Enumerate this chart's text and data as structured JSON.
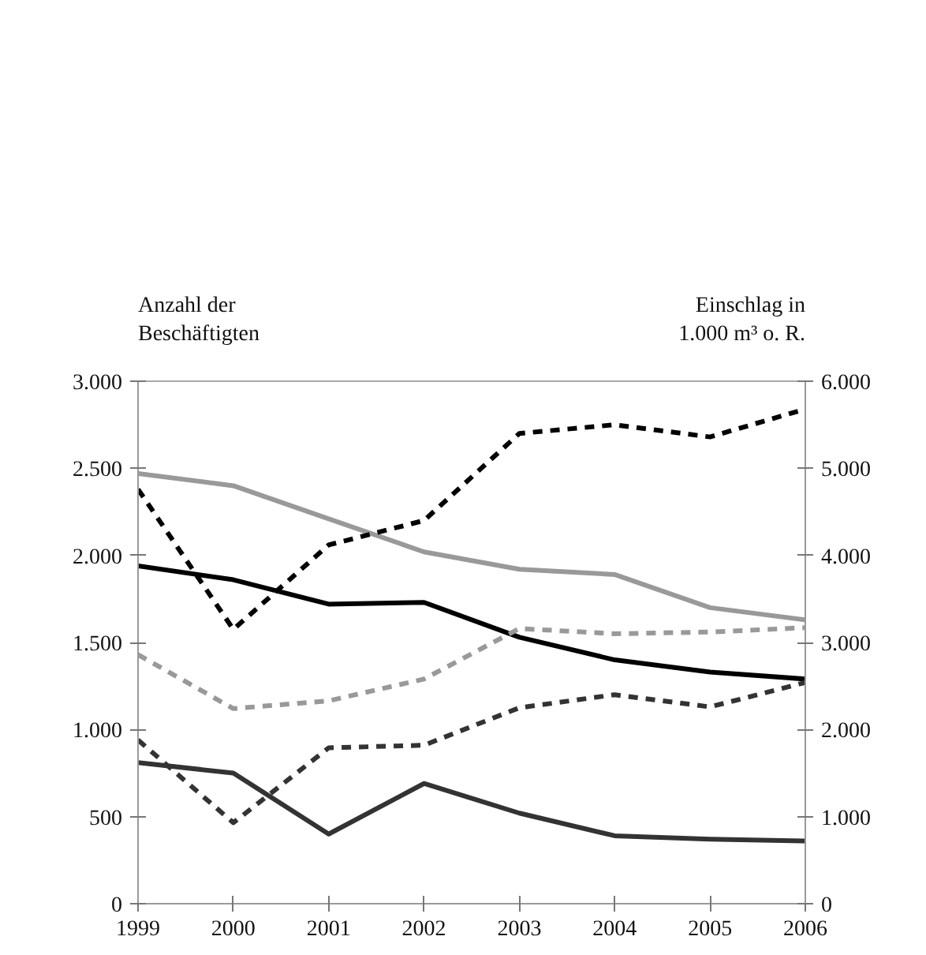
{
  "chart_data": {
    "type": "line",
    "ylabel": "Anzahl der\nBeschäftigten",
    "y2label": "Einschlag in\n1.000 m³ o. R.",
    "x": [
      1999,
      2000,
      2001,
      2002,
      2003,
      2004,
      2005,
      2006
    ],
    "xlim": [
      1999,
      2006
    ],
    "xticks": [
      1999,
      2000,
      2001,
      2002,
      2003,
      2004,
      2005,
      2006
    ],
    "ylim": [
      0,
      3000
    ],
    "yticks": [
      0,
      {
        "value": 500,
        "label": "500"
      },
      {
        "value": 1000,
        "label": "1.000"
      },
      {
        "value": 1500,
        "label": "1.500"
      },
      {
        "value": 2000,
        "label": "2.000"
      },
      {
        "value": 2500,
        "label": "2.500"
      },
      {
        "value": 3000,
        "label": "3.000"
      }
    ],
    "y2lim": [
      0,
      6000
    ],
    "y2ticks": [
      0,
      {
        "value": 1000,
        "label": "1.000"
      },
      {
        "value": 2000,
        "label": "2.000"
      },
      {
        "value": 3000,
        "label": "3.000"
      },
      {
        "value": 4000,
        "label": "4.000"
      },
      {
        "value": 5000,
        "label": "5.000"
      },
      {
        "value": 6000,
        "label": "6.000"
      }
    ],
    "grid": false,
    "marker": "none",
    "series": [
      {
        "color": "#999999",
        "line_style": "solid",
        "values": [
          2470,
          2400,
          2210,
          2020,
          1920,
          1890,
          1700,
          1630
        ]
      },
      {
        "color": "#000000",
        "line_style": "solid",
        "values": [
          1940,
          1860,
          1720,
          1730,
          1530,
          1400,
          1330,
          1290
        ]
      },
      {
        "color": "#333333",
        "line_style": "solid",
        "values": [
          810,
          750,
          400,
          690,
          520,
          390,
          370,
          360
        ]
      },
      {
        "color": "#000000",
        "line_style": "dashed",
        "axis": "y2",
        "values": [
          4760,
          3150,
          4120,
          4400,
          5400,
          5500,
          5360,
          5680
        ]
      },
      {
        "color": "#999999",
        "line_style": "dashed",
        "axis": "y2",
        "values": [
          2860,
          2240,
          2330,
          2580,
          3160,
          3100,
          3120,
          3170
        ]
      },
      {
        "color": "#333333",
        "line_style": "dashed",
        "axis": "y2",
        "values": [
          1880,
          930,
          1790,
          1820,
          2250,
          2400,
          2260,
          2540
        ]
      }
    ]
  }
}
